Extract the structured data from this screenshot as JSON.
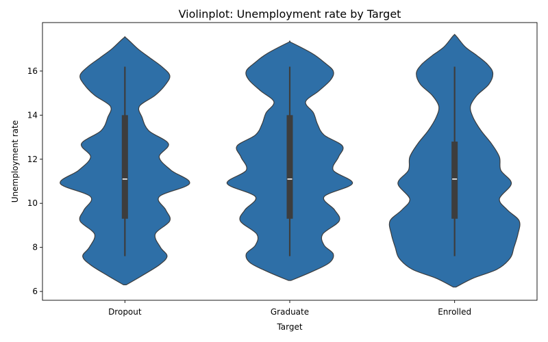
{
  "chart_data": {
    "type": "violin",
    "title": "Violinplot: Unemployment rate by Target",
    "xlabel": "Target",
    "ylabel": "Unemployment rate",
    "categories": [
      "Dropout",
      "Graduate",
      "Enrolled"
    ],
    "ylim": [
      5.6,
      18.2
    ],
    "yticks": [
      6,
      8,
      10,
      12,
      14,
      16
    ],
    "ytick_labels": [
      "6",
      "8",
      "10",
      "12",
      "14",
      "16"
    ],
    "grid": false,
    "legend": "none",
    "colors": {
      "violin_fill": "#2e6fa7",
      "violin_edge": "#3b3b3b",
      "box": "#3d3d3d",
      "median": "#ffffff"
    },
    "box_stats": [
      {
        "category": "Dropout",
        "whisker_low": 7.6,
        "q1": 9.3,
        "median": 11.1,
        "q3": 14.0,
        "whisker_high": 16.2
      },
      {
        "category": "Graduate",
        "whisker_low": 7.6,
        "q1": 9.3,
        "median": 11.1,
        "q3": 14.0,
        "whisker_high": 16.2
      },
      {
        "category": "Enrolled",
        "whisker_low": 7.6,
        "q1": 9.3,
        "median": 11.1,
        "q3": 12.8,
        "whisker_high": 16.2
      }
    ],
    "density": [
      {
        "category": "Dropout",
        "y": [
          6.3,
          6.7,
          7.2,
          7.6,
          8.0,
          8.6,
          9.2,
          9.7,
          10.3,
          10.9,
          11.5,
          12.1,
          12.7,
          13.3,
          13.9,
          14.4,
          14.9,
          15.4,
          15.8,
          16.2,
          16.6,
          17.0,
          17.5
        ],
        "width": [
          0.02,
          0.25,
          0.52,
          0.64,
          0.54,
          0.46,
          0.68,
          0.62,
          0.52,
          0.98,
          0.7,
          0.52,
          0.66,
          0.36,
          0.26,
          0.22,
          0.46,
          0.62,
          0.68,
          0.56,
          0.38,
          0.2,
          0.02
        ]
      },
      {
        "category": "Graduate",
        "y": [
          6.5,
          6.9,
          7.3,
          7.7,
          8.1,
          8.6,
          9.2,
          9.7,
          10.3,
          10.9,
          11.5,
          12.1,
          12.6,
          13.1,
          13.6,
          14.1,
          14.6,
          15.1,
          15.6,
          16.0,
          16.4,
          16.8,
          17.3
        ],
        "width": [
          0.02,
          0.34,
          0.6,
          0.66,
          0.52,
          0.5,
          0.75,
          0.68,
          0.52,
          0.95,
          0.66,
          0.74,
          0.8,
          0.52,
          0.42,
          0.36,
          0.24,
          0.44,
          0.62,
          0.66,
          0.52,
          0.34,
          0.02
        ]
      },
      {
        "category": "Enrolled",
        "y": [
          6.2,
          6.6,
          7.0,
          7.5,
          8.0,
          8.6,
          9.2,
          9.7,
          10.2,
          10.9,
          11.5,
          12.1,
          12.7,
          13.3,
          13.9,
          14.4,
          14.9,
          15.4,
          15.9,
          16.3,
          16.7,
          17.1,
          17.6
        ],
        "width": [
          0.02,
          0.28,
          0.64,
          0.84,
          0.9,
          0.96,
          0.98,
          0.8,
          0.68,
          0.86,
          0.7,
          0.68,
          0.56,
          0.4,
          0.28,
          0.24,
          0.34,
          0.52,
          0.58,
          0.5,
          0.34,
          0.16,
          0.02
        ]
      }
    ]
  }
}
